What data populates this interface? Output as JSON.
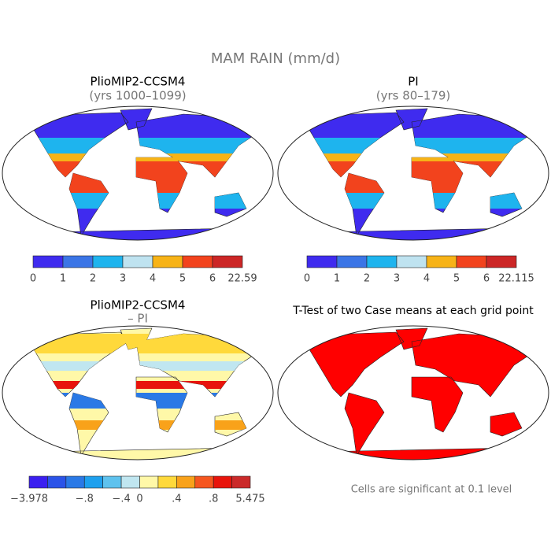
{
  "title": "MAM RAIN (mm/d)",
  "panels": [
    {
      "title": "PlioMIP2-CCSM4",
      "subtitle": "(yrs 1000–1099)",
      "colorbar": {
        "colors": [
          "#3f2bef",
          "#3b75e6",
          "#1eb4ee",
          "#bfe3f0",
          "#f7b317",
          "#f2431d",
          "#cc2626"
        ],
        "labels": [
          "0",
          "1",
          "2",
          "3",
          "4",
          "5",
          "6",
          "22.59"
        ]
      }
    },
    {
      "title": "PI",
      "subtitle": "(yrs 80–179)",
      "colorbar": {
        "colors": [
          "#3f2bef",
          "#3b75e6",
          "#1eb4ee",
          "#bfe3f0",
          "#f7b317",
          "#f2431d",
          "#cc2626"
        ],
        "labels": [
          "0",
          "1",
          "2",
          "3",
          "4",
          "5",
          "6",
          "22.115"
        ]
      }
    },
    {
      "title": "PlioMIP2-CCSM4",
      "subtitle": "– PI",
      "colorbar": {
        "colors": [
          "#3b1ff0",
          "#2b53e8",
          "#2a79e6",
          "#1ea0ee",
          "#5ec2ee",
          "#c0e6f0",
          "#fff8a8",
          "#ffd93b",
          "#f9a21a",
          "#f5561f",
          "#e8140c",
          "#cb2a2a"
        ],
        "labels": [
          "−3.978",
          null,
          null,
          "−.8",
          null,
          "−.4",
          "0",
          null,
          ".4",
          null,
          ".8",
          null,
          "5.475"
        ]
      }
    },
    {
      "title": "T-Test of two Case means at each grid point",
      "note": "Cells are significant at 0.1 level"
    }
  ]
}
